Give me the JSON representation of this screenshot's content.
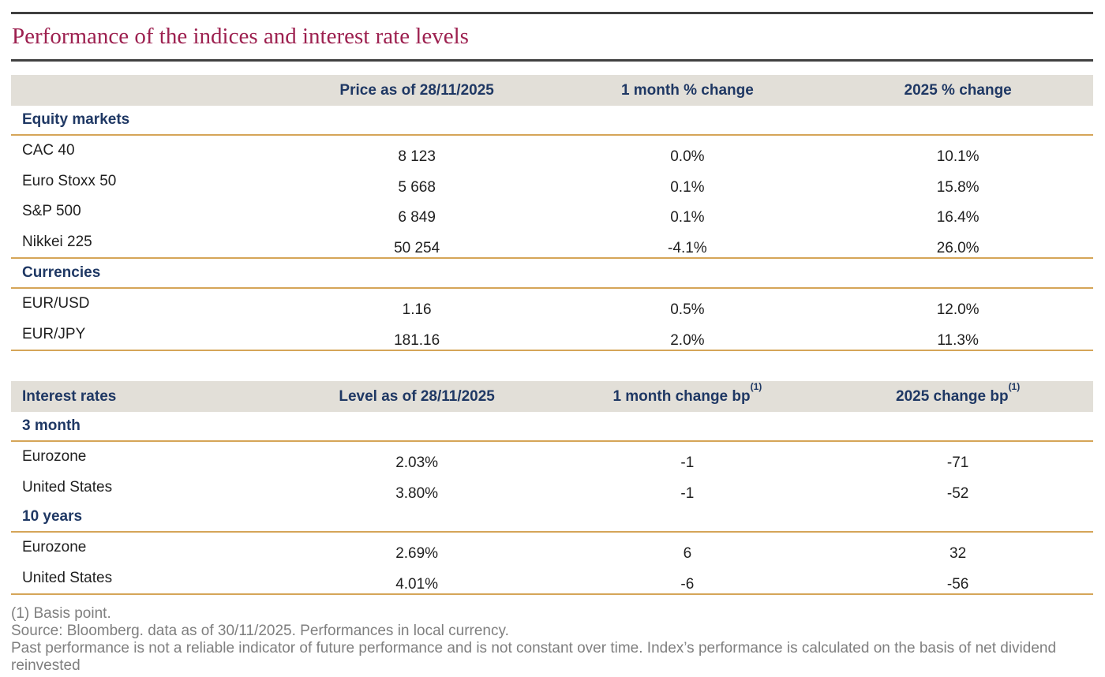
{
  "page_title": "Performance of the indices and interest rate levels",
  "indices_table": {
    "column_headers": [
      "Price as of 28/11/2025",
      "1 month % change",
      "2025 % change"
    ],
    "sections": [
      {
        "name": "Equity markets",
        "rows": [
          {
            "label": "CAC 40",
            "values": [
              "8 123",
              "0.0%",
              "10.1%"
            ]
          },
          {
            "label": "Euro Stoxx 50",
            "values": [
              "5 668",
              "0.1%",
              "15.8%"
            ]
          },
          {
            "label": "S&P 500",
            "values": [
              "6 849",
              "0.1%",
              "16.4%"
            ]
          },
          {
            "label": "Nikkei 225",
            "values": [
              "50 254",
              "-4.1%",
              "26.0%"
            ]
          }
        ]
      },
      {
        "name": "Currencies",
        "rows": [
          {
            "label": "EUR/USD",
            "values": [
              "1.16",
              "0.5%",
              "12.0%"
            ]
          },
          {
            "label": "EUR/JPY",
            "values": [
              "181.16",
              "2.0%",
              "11.3%"
            ]
          }
        ]
      }
    ]
  },
  "rates_table": {
    "first_column_header": "Interest rates",
    "column_headers": [
      {
        "text": "Level as of 28/11/2025",
        "sup": ""
      },
      {
        "text": "1 month change bp",
        "sup": "(1)"
      },
      {
        "text": "2025 change bp",
        "sup": "(1)"
      }
    ],
    "sections": [
      {
        "name": "3 month",
        "rows": [
          {
            "label": "Eurozone",
            "values": [
              "2.03%",
              "-1",
              "-71"
            ]
          },
          {
            "label": "United States",
            "values": [
              "3.80%",
              "-1",
              "-52"
            ]
          }
        ]
      },
      {
        "name": "10 years",
        "rows": [
          {
            "label": "Eurozone",
            "values": [
              "2.69%",
              "6",
              "32"
            ]
          },
          {
            "label": "United States",
            "values": [
              "4.01%",
              "-6",
              "-56"
            ]
          }
        ]
      }
    ]
  },
  "footnotes": [
    "(1) Basis point.",
    "Source: Bloomberg. data as of 30/11/2025. Performances in local currency.",
    "Past performance is not a reliable indicator of future performance and is not constant over time. Index’s performance is calculated on the basis of net dividend reinvested"
  ],
  "colors": {
    "title_maroon": "#9d2150",
    "dark_rule": "#404040",
    "navy": "#1f3864",
    "gold_rule": "#d5a558",
    "header_band_bg": "#e2dfd8",
    "body_text": "#1f1f1f",
    "footnote_gray": "#7f7f7f"
  }
}
